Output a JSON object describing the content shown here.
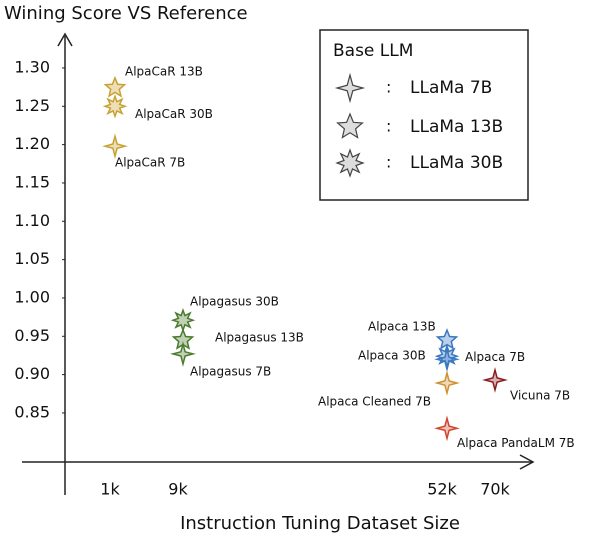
{
  "chart_data": {
    "type": "scatter",
    "title": "Wining Score VS Reference",
    "x_label": "Instruction Tuning Dataset Size",
    "categories": [
      "1k",
      "9k",
      "52k",
      "70k"
    ],
    "ylim": [
      0.786,
      1.343
    ],
    "yticks": [
      {
        "value": 1.3,
        "label": "1.30"
      },
      {
        "value": 1.25,
        "label": "1.25"
      },
      {
        "value": 1.2,
        "label": "1.20"
      },
      {
        "value": 1.15,
        "label": "1.15"
      },
      {
        "value": 1.1,
        "label": "1.10"
      },
      {
        "value": 1.05,
        "label": "1.05"
      },
      {
        "value": 1.0,
        "label": "1.00"
      },
      {
        "value": 0.95,
        "label": "0.95"
      },
      {
        "value": 0.9,
        "label": "0.90"
      },
      {
        "value": 0.85,
        "label": "0.85"
      }
    ],
    "legend": {
      "title": "Base LLM",
      "separator": ":",
      "entries": [
        "LLaMa 7B",
        "LLaMa 13B",
        "LLaMa 30B"
      ],
      "corner": "upper right"
    },
    "points": [
      {
        "label": "AlpaCaR 13B",
        "x": "1k",
        "y": 1.274,
        "color": "#c9a132",
        "base": 1
      },
      {
        "label": "AlpaCaR 30B",
        "x": "1k",
        "y": 1.25,
        "color": "#c9a132",
        "base": 2
      },
      {
        "label": "AlpaCaR 7B",
        "x": "1k",
        "y": 1.198,
        "color": "#c9a132",
        "base": 0
      },
      {
        "label": "Alpagasus 30B",
        "x": "9k",
        "y": 0.971,
        "color": "#4b7b2e",
        "base": 2
      },
      {
        "label": "Alpagasus 13B",
        "x": "9k",
        "y": 0.945,
        "color": "#4b7b2e",
        "base": 1
      },
      {
        "label": "Alpagasus 7B",
        "x": "9k",
        "y": 0.927,
        "color": "#4b7b2e",
        "base": 0
      },
      {
        "label": "Alpaca 13B",
        "x": "52k",
        "y": 0.945,
        "color": "#3a78c2",
        "base": 1
      },
      {
        "label": "Alpaca 30B",
        "x": "52k",
        "y": 0.924,
        "color": "#3a78c2",
        "base": 2
      },
      {
        "label": "Alpaca 7B",
        "x": "52k",
        "y": 0.92,
        "color": "#3a78c2",
        "base": 0
      },
      {
        "label": "Alpaca Cleaned 7B",
        "x": "52k",
        "y": 0.889,
        "color": "#d0902e",
        "base": 0
      },
      {
        "label": "Alpaca PandaLM 7B",
        "x": "52k",
        "y": 0.83,
        "color": "#d0452e",
        "base": 0
      },
      {
        "label": "Vicuna 7B",
        "x": "70k",
        "y": 0.893,
        "color": "#8b1c1c",
        "base": 0
      }
    ]
  }
}
